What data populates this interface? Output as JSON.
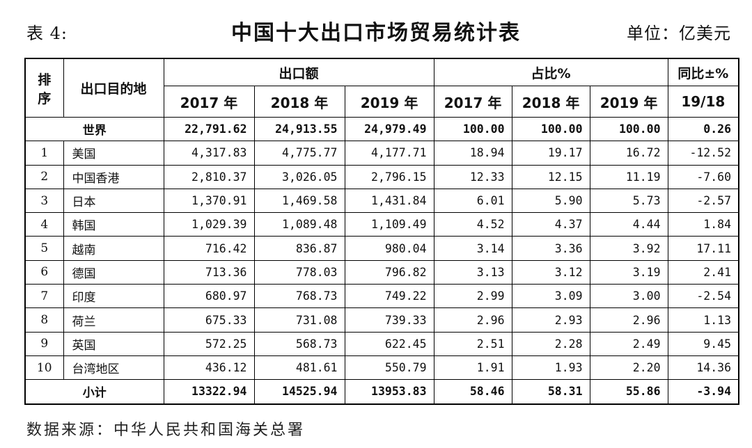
{
  "caption": {
    "table_no": "表 4:",
    "title": "中国十大出口市场贸易统计表",
    "unit": "单位：亿美元"
  },
  "header": {
    "rank": "排\n序",
    "rank_line1": "排",
    "rank_line2": "序",
    "destination": "出口目的地",
    "export_amount": "出口额",
    "share": "占比%",
    "yoy": "同比±%",
    "yoy_sub": "19/18",
    "years": [
      "2017 年",
      "2018 年",
      "2019 年"
    ]
  },
  "world": {
    "label": "世界",
    "values": [
      "22,791.62",
      "24,913.55",
      "24,979.49",
      "100.00",
      "100.00",
      "100.00",
      "0.26"
    ]
  },
  "rows": [
    {
      "rank": "1",
      "name": "美国",
      "values": [
        "4,317.83",
        "4,775.77",
        "4,177.71",
        "18.94",
        "19.17",
        "16.72",
        "-12.52"
      ]
    },
    {
      "rank": "2",
      "name": "中国香港",
      "values": [
        "2,810.37",
        "3,026.05",
        "2,796.15",
        "12.33",
        "12.15",
        "11.19",
        "-7.60"
      ]
    },
    {
      "rank": "3",
      "name": "日本",
      "values": [
        "1,370.91",
        "1,469.58",
        "1,431.84",
        "6.01",
        "5.90",
        "5.73",
        "-2.57"
      ]
    },
    {
      "rank": "4",
      "name": "韩国",
      "values": [
        "1,029.39",
        "1,089.48",
        "1,109.49",
        "4.52",
        "4.37",
        "4.44",
        "1.84"
      ]
    },
    {
      "rank": "5",
      "name": "越南",
      "values": [
        "716.42",
        "836.87",
        "980.04",
        "3.14",
        "3.36",
        "3.92",
        "17.11"
      ]
    },
    {
      "rank": "6",
      "name": "德国",
      "values": [
        "713.36",
        "778.03",
        "796.82",
        "3.13",
        "3.12",
        "3.19",
        "2.41"
      ]
    },
    {
      "rank": "7",
      "name": "印度",
      "values": [
        "680.97",
        "768.73",
        "749.22",
        "2.99",
        "3.09",
        "3.00",
        "-2.54"
      ]
    },
    {
      "rank": "8",
      "name": "荷兰",
      "values": [
        "675.33",
        "731.08",
        "739.33",
        "2.96",
        "2.93",
        "2.96",
        "1.13"
      ]
    },
    {
      "rank": "9",
      "name": "英国",
      "values": [
        "572.25",
        "568.73",
        "622.45",
        "2.51",
        "2.28",
        "2.49",
        "9.45"
      ]
    },
    {
      "rank": "10",
      "name": "台湾地区",
      "values": [
        "436.12",
        "481.61",
        "550.79",
        "1.91",
        "1.93",
        "2.20",
        "14.36"
      ]
    }
  ],
  "subtotal": {
    "label": "小计",
    "values": [
      "13322.94",
      "14525.94",
      "13953.83",
      "58.46",
      "58.31",
      "55.86",
      "-3.94"
    ]
  },
  "source": "数据来源：中华人民共和国海关总署"
}
